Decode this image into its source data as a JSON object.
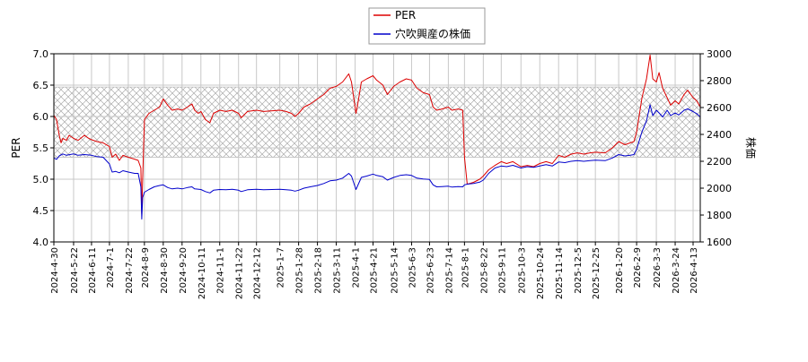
{
  "chart_data": {
    "type": "line",
    "xlabel": "",
    "ylabel_left": "PER",
    "ylabel_right": "株価",
    "grid": true,
    "legend_position": "top-center",
    "band": {
      "y_low": 5.35,
      "y_high": 6.47,
      "color": "#aaaaaa",
      "pattern": "crosshatch"
    },
    "x_start": "2024-04-30",
    "x_end": "2026-04-21",
    "x_ticks": [
      "2024-4-30",
      "2024-5-22",
      "2024-6-11",
      "2024-7-1",
      "2024-7-22",
      "2024-8-9",
      "2024-8-30",
      "2024-9-20",
      "2024-10-11",
      "2024-11-1",
      "2024-11-22",
      "2024-12-12",
      "2025-1-7",
      "2025-1-28",
      "2025-2-18",
      "2025-3-11",
      "2025-4-1",
      "2025-4-21",
      "2025-5-14",
      "2025-6-3",
      "2025-6-23",
      "2025-7-14",
      "2025-8-1",
      "2025-8-22",
      "2025-9-11",
      "2025-10-3",
      "2025-10-24",
      "2025-11-14",
      "2025-12-5",
      "2025-12-25",
      "2026-1-20",
      "2026-2-9",
      "2026-3-3",
      "2026-3-24",
      "2026-4-13"
    ],
    "y_left": {
      "min": 4.0,
      "max": 7.0,
      "ticks": [
        "4.0",
        "4.5",
        "5.0",
        "5.5",
        "6.0",
        "6.5",
        "7.0"
      ]
    },
    "y_right": {
      "min": 1600,
      "max": 3000,
      "ticks": [
        "1600",
        "1800",
        "2000",
        "2200",
        "2400",
        "2600",
        "2800",
        "3000"
      ]
    },
    "series": [
      {
        "name": "PER",
        "axis": "left",
        "color": "#dd0000",
        "points": [
          [
            "2024-04-30",
            6.02
          ],
          [
            "2024-05-03",
            5.95
          ],
          [
            "2024-05-06",
            5.7
          ],
          [
            "2024-05-08",
            5.58
          ],
          [
            "2024-05-10",
            5.65
          ],
          [
            "2024-05-14",
            5.62
          ],
          [
            "2024-05-17",
            5.7
          ],
          [
            "2024-05-22",
            5.65
          ],
          [
            "2024-05-27",
            5.62
          ],
          [
            "2024-06-03",
            5.7
          ],
          [
            "2024-06-07",
            5.66
          ],
          [
            "2024-06-11",
            5.63
          ],
          [
            "2024-06-17",
            5.6
          ],
          [
            "2024-06-24",
            5.58
          ],
          [
            "2024-07-01",
            5.52
          ],
          [
            "2024-07-04",
            5.35
          ],
          [
            "2024-07-08",
            5.4
          ],
          [
            "2024-07-12",
            5.3
          ],
          [
            "2024-07-16",
            5.38
          ],
          [
            "2024-07-22",
            5.35
          ],
          [
            "2024-07-29",
            5.32
          ],
          [
            "2024-08-02",
            5.3
          ],
          [
            "2024-08-05",
            5.18
          ],
          [
            "2024-08-06",
            4.45
          ],
          [
            "2024-08-07",
            5.0
          ],
          [
            "2024-08-09",
            5.95
          ],
          [
            "2024-08-14",
            6.05
          ],
          [
            "2024-08-20",
            6.1
          ],
          [
            "2024-08-26",
            6.15
          ],
          [
            "2024-08-30",
            6.28
          ],
          [
            "2024-09-04",
            6.18
          ],
          [
            "2024-09-09",
            6.1
          ],
          [
            "2024-09-15",
            6.12
          ],
          [
            "2024-09-20",
            6.1
          ],
          [
            "2024-09-26",
            6.15
          ],
          [
            "2024-10-01",
            6.2
          ],
          [
            "2024-10-04",
            6.1
          ],
          [
            "2024-10-08",
            6.05
          ],
          [
            "2024-10-11",
            6.08
          ],
          [
            "2024-10-16",
            5.95
          ],
          [
            "2024-10-21",
            5.9
          ],
          [
            "2024-10-25",
            6.05
          ],
          [
            "2024-11-01",
            6.1
          ],
          [
            "2024-11-08",
            6.08
          ],
          [
            "2024-11-15",
            6.1
          ],
          [
            "2024-11-22",
            6.05
          ],
          [
            "2024-11-25",
            5.98
          ],
          [
            "2024-12-02",
            6.08
          ],
          [
            "2024-12-12",
            6.1
          ],
          [
            "2024-12-20",
            6.08
          ],
          [
            "2025-01-07",
            6.1
          ],
          [
            "2025-01-14",
            6.08
          ],
          [
            "2025-01-20",
            6.05
          ],
          [
            "2025-01-24",
            6.0
          ],
          [
            "2025-01-28",
            6.05
          ],
          [
            "2025-02-03",
            6.15
          ],
          [
            "2025-02-10",
            6.2
          ],
          [
            "2025-02-18",
            6.28
          ],
          [
            "2025-02-25",
            6.35
          ],
          [
            "2025-03-04",
            6.45
          ],
          [
            "2025-03-11",
            6.48
          ],
          [
            "2025-03-18",
            6.55
          ],
          [
            "2025-03-25",
            6.68
          ],
          [
            "2025-03-28",
            6.55
          ],
          [
            "2025-04-02",
            6.05
          ],
          [
            "2025-04-04",
            6.2
          ],
          [
            "2025-04-08",
            6.55
          ],
          [
            "2025-04-14",
            6.6
          ],
          [
            "2025-04-21",
            6.65
          ],
          [
            "2025-04-25",
            6.58
          ],
          [
            "2025-05-02",
            6.5
          ],
          [
            "2025-05-07",
            6.35
          ],
          [
            "2025-05-14",
            6.48
          ],
          [
            "2025-05-21",
            6.55
          ],
          [
            "2025-05-28",
            6.6
          ],
          [
            "2025-06-03",
            6.58
          ],
          [
            "2025-06-09",
            6.45
          ],
          [
            "2025-06-16",
            6.38
          ],
          [
            "2025-06-23",
            6.35
          ],
          [
            "2025-06-27",
            6.15
          ],
          [
            "2025-07-01",
            6.1
          ],
          [
            "2025-07-07",
            6.12
          ],
          [
            "2025-07-14",
            6.15
          ],
          [
            "2025-07-18",
            6.1
          ],
          [
            "2025-07-25",
            6.12
          ],
          [
            "2025-07-30",
            6.1
          ],
          [
            "2025-08-01",
            5.35
          ],
          [
            "2025-08-04",
            4.92
          ],
          [
            "2025-08-11",
            4.95
          ],
          [
            "2025-08-18",
            5.0
          ],
          [
            "2025-08-22",
            5.05
          ],
          [
            "2025-08-28",
            5.15
          ],
          [
            "2025-09-04",
            5.22
          ],
          [
            "2025-09-11",
            5.28
          ],
          [
            "2025-09-17",
            5.25
          ],
          [
            "2025-09-24",
            5.28
          ],
          [
            "2025-10-03",
            5.2
          ],
          [
            "2025-10-10",
            5.22
          ],
          [
            "2025-10-17",
            5.2
          ],
          [
            "2025-10-24",
            5.25
          ],
          [
            "2025-10-31",
            5.28
          ],
          [
            "2025-11-07",
            5.25
          ],
          [
            "2025-11-14",
            5.38
          ],
          [
            "2025-11-21",
            5.35
          ],
          [
            "2025-11-28",
            5.4
          ],
          [
            "2025-12-05",
            5.42
          ],
          [
            "2025-12-12",
            5.4
          ],
          [
            "2025-12-19",
            5.42
          ],
          [
            "2025-12-25",
            5.43
          ],
          [
            "2026-01-05",
            5.42
          ],
          [
            "2026-01-13",
            5.5
          ],
          [
            "2026-01-20",
            5.6
          ],
          [
            "2026-01-27",
            5.55
          ],
          [
            "2026-02-02",
            5.58
          ],
          [
            "2026-02-06",
            5.6
          ],
          [
            "2026-02-09",
            5.75
          ],
          [
            "2026-02-15",
            6.3
          ],
          [
            "2026-02-20",
            6.6
          ],
          [
            "2026-02-24",
            6.98
          ],
          [
            "2026-02-27",
            6.6
          ],
          [
            "2026-03-03",
            6.55
          ],
          [
            "2026-03-06",
            6.7
          ],
          [
            "2026-03-10",
            6.45
          ],
          [
            "2026-03-15",
            6.3
          ],
          [
            "2026-03-19",
            6.18
          ],
          [
            "2026-03-24",
            6.25
          ],
          [
            "2026-03-28",
            6.2
          ],
          [
            "2026-04-03",
            6.35
          ],
          [
            "2026-04-07",
            6.42
          ],
          [
            "2026-04-13",
            6.3
          ],
          [
            "2026-04-17",
            6.25
          ],
          [
            "2026-04-21",
            6.15
          ]
        ]
      },
      {
        "name": "穴吹興産の株価",
        "axis": "right",
        "color": "#0000cc",
        "points": [
          [
            "2024-04-30",
            2225
          ],
          [
            "2024-05-03",
            2215
          ],
          [
            "2024-05-06",
            2240
          ],
          [
            "2024-05-10",
            2255
          ],
          [
            "2024-05-14",
            2245
          ],
          [
            "2024-05-22",
            2255
          ],
          [
            "2024-05-27",
            2245
          ],
          [
            "2024-06-03",
            2250
          ],
          [
            "2024-06-11",
            2245
          ],
          [
            "2024-06-17",
            2235
          ],
          [
            "2024-06-24",
            2230
          ],
          [
            "2024-07-01",
            2180
          ],
          [
            "2024-07-04",
            2120
          ],
          [
            "2024-07-08",
            2125
          ],
          [
            "2024-07-12",
            2115
          ],
          [
            "2024-07-16",
            2130
          ],
          [
            "2024-07-22",
            2120
          ],
          [
            "2024-07-29",
            2110
          ],
          [
            "2024-08-02",
            2110
          ],
          [
            "2024-08-05",
            2010
          ],
          [
            "2024-08-06",
            1770
          ],
          [
            "2024-08-07",
            1930
          ],
          [
            "2024-08-09",
            1970
          ],
          [
            "2024-08-14",
            1990
          ],
          [
            "2024-08-20",
            2010
          ],
          [
            "2024-08-26",
            2020
          ],
          [
            "2024-08-30",
            2025
          ],
          [
            "2024-09-04",
            2005
          ],
          [
            "2024-09-09",
            1995
          ],
          [
            "2024-09-15",
            2000
          ],
          [
            "2024-09-20",
            1995
          ],
          [
            "2024-09-26",
            2005
          ],
          [
            "2024-10-01",
            2010
          ],
          [
            "2024-10-04",
            1995
          ],
          [
            "2024-10-11",
            1990
          ],
          [
            "2024-10-16",
            1975
          ],
          [
            "2024-10-21",
            1965
          ],
          [
            "2024-10-25",
            1985
          ],
          [
            "2024-11-01",
            1990
          ],
          [
            "2024-11-08",
            1988
          ],
          [
            "2024-11-15",
            1992
          ],
          [
            "2024-11-22",
            1985
          ],
          [
            "2024-11-25",
            1975
          ],
          [
            "2024-12-02",
            1988
          ],
          [
            "2024-12-12",
            1992
          ],
          [
            "2024-12-20",
            1988
          ],
          [
            "2025-01-07",
            1992
          ],
          [
            "2025-01-14",
            1988
          ],
          [
            "2025-01-20",
            1985
          ],
          [
            "2025-01-24",
            1978
          ],
          [
            "2025-01-28",
            1985
          ],
          [
            "2025-02-03",
            2000
          ],
          [
            "2025-02-10",
            2010
          ],
          [
            "2025-02-18",
            2020
          ],
          [
            "2025-02-25",
            2035
          ],
          [
            "2025-03-04",
            2055
          ],
          [
            "2025-03-11",
            2060
          ],
          [
            "2025-03-18",
            2075
          ],
          [
            "2025-03-25",
            2110
          ],
          [
            "2025-03-28",
            2090
          ],
          [
            "2025-04-02",
            1990
          ],
          [
            "2025-04-04",
            2020
          ],
          [
            "2025-04-08",
            2080
          ],
          [
            "2025-04-14",
            2090
          ],
          [
            "2025-04-21",
            2105
          ],
          [
            "2025-04-25",
            2095
          ],
          [
            "2025-05-02",
            2085
          ],
          [
            "2025-05-07",
            2060
          ],
          [
            "2025-05-14",
            2080
          ],
          [
            "2025-05-21",
            2095
          ],
          [
            "2025-05-28",
            2100
          ],
          [
            "2025-06-03",
            2095
          ],
          [
            "2025-06-09",
            2075
          ],
          [
            "2025-06-16",
            2068
          ],
          [
            "2025-06-23",
            2065
          ],
          [
            "2025-06-27",
            2025
          ],
          [
            "2025-07-01",
            2010
          ],
          [
            "2025-07-07",
            2012
          ],
          [
            "2025-07-14",
            2015
          ],
          [
            "2025-07-18",
            2008
          ],
          [
            "2025-07-25",
            2012
          ],
          [
            "2025-07-30",
            2010
          ],
          [
            "2025-08-01",
            2025
          ],
          [
            "2025-08-04",
            2030
          ],
          [
            "2025-08-11",
            2035
          ],
          [
            "2025-08-18",
            2045
          ],
          [
            "2025-08-22",
            2060
          ],
          [
            "2025-08-28",
            2110
          ],
          [
            "2025-09-04",
            2150
          ],
          [
            "2025-09-11",
            2165
          ],
          [
            "2025-09-17",
            2160
          ],
          [
            "2025-09-24",
            2170
          ],
          [
            "2025-10-03",
            2150
          ],
          [
            "2025-10-10",
            2160
          ],
          [
            "2025-10-17",
            2155
          ],
          [
            "2025-10-24",
            2165
          ],
          [
            "2025-10-31",
            2175
          ],
          [
            "2025-11-07",
            2165
          ],
          [
            "2025-11-14",
            2195
          ],
          [
            "2025-11-21",
            2190
          ],
          [
            "2025-11-28",
            2200
          ],
          [
            "2025-12-05",
            2205
          ],
          [
            "2025-12-12",
            2200
          ],
          [
            "2025-12-19",
            2205
          ],
          [
            "2025-12-25",
            2208
          ],
          [
            "2026-01-05",
            2205
          ],
          [
            "2026-01-13",
            2225
          ],
          [
            "2026-01-20",
            2250
          ],
          [
            "2026-01-27",
            2240
          ],
          [
            "2026-02-02",
            2245
          ],
          [
            "2026-02-06",
            2250
          ],
          [
            "2026-02-09",
            2290
          ],
          [
            "2026-02-15",
            2420
          ],
          [
            "2026-02-20",
            2500
          ],
          [
            "2026-02-24",
            2620
          ],
          [
            "2026-02-27",
            2540
          ],
          [
            "2026-03-03",
            2580
          ],
          [
            "2026-03-06",
            2560
          ],
          [
            "2026-03-10",
            2530
          ],
          [
            "2026-03-15",
            2580
          ],
          [
            "2026-03-19",
            2540
          ],
          [
            "2026-03-24",
            2560
          ],
          [
            "2026-03-28",
            2545
          ],
          [
            "2026-04-03",
            2580
          ],
          [
            "2026-04-07",
            2590
          ],
          [
            "2026-04-13",
            2570
          ],
          [
            "2026-04-17",
            2555
          ],
          [
            "2026-04-21",
            2530
          ]
        ]
      }
    ]
  }
}
